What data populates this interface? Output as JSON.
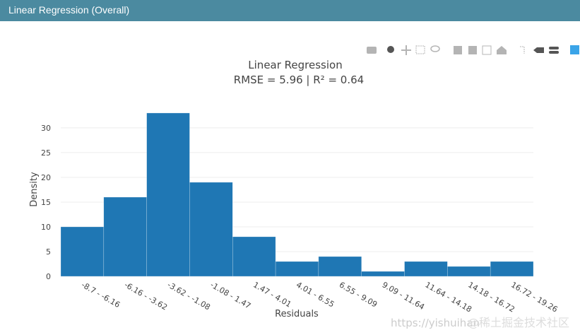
{
  "panel_title": "Linear Regression (Overall)",
  "watermark": [
    "https://yishuihan",
    "@稀土掘金技术社区"
  ],
  "chart_data": {
    "type": "bar",
    "title": "Linear Regression",
    "subtitle": "RMSE = 5.96 | R² = 0.64",
    "x_label": "Residuals",
    "y_label": "Density",
    "categories": [
      "-8.7 - -6.16",
      "-6.16 - -3.62",
      "-3.62 - -1.08",
      "-1.08 - 1.47",
      "1.47 - 4.01",
      "4.01 - 6.55",
      "6.55 - 9.09",
      "9.09 - 11.64",
      "11.64 - 14.18",
      "14.18 - 16.72",
      "16.72 - 19.26"
    ],
    "values": [
      10,
      16,
      33,
      19,
      8,
      3,
      4,
      1,
      3,
      2,
      3
    ],
    "color": "#1f77b4",
    "ylim": [
      0,
      34.7
    ],
    "yticks": [
      0,
      5,
      10,
      15,
      20,
      25,
      30
    ],
    "grid": true
  }
}
